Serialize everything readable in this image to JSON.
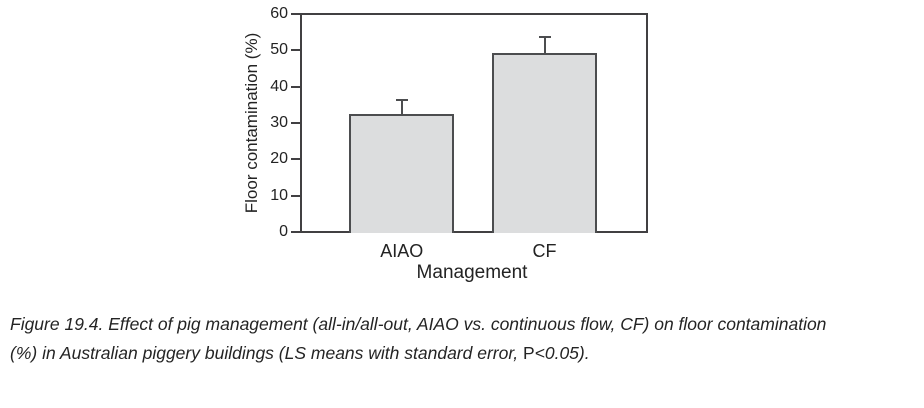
{
  "chart_data": {
    "type": "bar",
    "categories": [
      "AIAO",
      "CF"
    ],
    "values": [
      32.4,
      49.5
    ],
    "errors": [
      4.0,
      4.4
    ],
    "title": "",
    "xlabel": "Management",
    "ylabel": "Floor contamination (%)",
    "ylim": [
      0,
      60
    ],
    "yticks": [
      0,
      10,
      20,
      30,
      40,
      50,
      60
    ],
    "grid": false,
    "legend": false,
    "error_bars": "upper standard error caps",
    "bar_fill": "#dcddde",
    "bar_border": "#4c4d4f",
    "axis_color": "#414042"
  },
  "caption": {
    "line1": "Figure 19.4. Effect of pig management (all-in/all-out, AIAO vs. continuous flow, CF) on floor contamination",
    "line2_pre": "(%) in Australian piggery buildings (LS means with standard error, ",
    "line2_p": "P",
    "line2_post": "<0.05)."
  }
}
